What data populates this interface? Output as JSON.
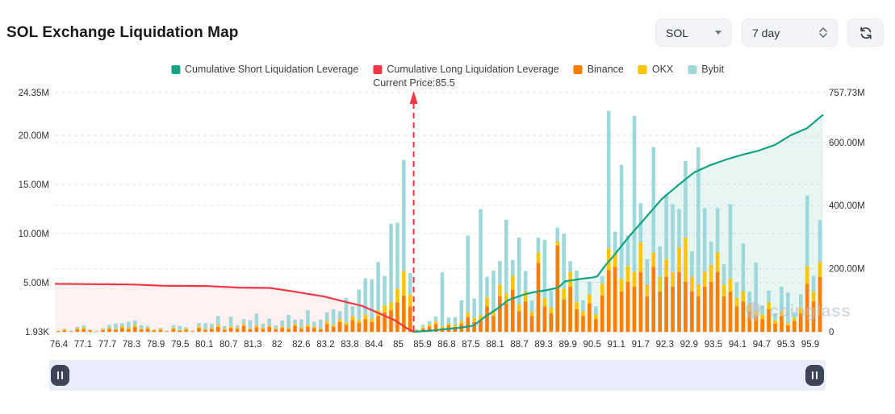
{
  "header": {
    "title": "SOL Exchange Liquidation Map",
    "controls": {
      "symbol": "SOL",
      "timeframe": "7 day",
      "refresh_icon": "refresh-icon"
    }
  },
  "legend": [
    {
      "label": "Cumulative Short Liquidation Leverage",
      "color": "#14a383"
    },
    {
      "label": "Cumulative Long Liquidation Leverage",
      "color": "#f23645"
    },
    {
      "label": "Binance",
      "color": "#ff7d00"
    },
    {
      "label": "OKX",
      "color": "#ffc400"
    },
    {
      "label": "Bybit",
      "color": "#9fd8db"
    }
  ],
  "watermark": {
    "text": "coinglass"
  },
  "chart_data": {
    "type": "bar",
    "title": "SOL Exchange Liquidation Map",
    "current_price": {
      "label": "Current Price:85.5",
      "value": 85.5,
      "x_fraction": 0.467,
      "line_color": "#f23645"
    },
    "x_axis": {
      "labels": [
        "76.4",
        "77.1",
        "77.7",
        "78.3",
        "78.9",
        "79.5",
        "80.1",
        "80.7",
        "81.3",
        "82",
        "82.6",
        "83.2",
        "83.8",
        "84.4",
        "85",
        "85.9",
        "86.8",
        "87.5",
        "88.1",
        "88.7",
        "89.3",
        "89.9",
        "90.5",
        "91.1",
        "91.7",
        "92.3",
        "92.9",
        "93.5",
        "94.1",
        "94.7",
        "95.3",
        "95.9"
      ]
    },
    "y_axis_left": {
      "unit": "M",
      "max": 24.35,
      "ticks": [
        {
          "label": "1.93K",
          "value": 0
        },
        {
          "label": "5.00M",
          "value": 5
        },
        {
          "label": "10.00M",
          "value": 10
        },
        {
          "label": "15.00M",
          "value": 15
        },
        {
          "label": "20.00M",
          "value": 20
        },
        {
          "label": "24.35M",
          "value": 24.35
        }
      ]
    },
    "y_axis_right": {
      "unit": "M",
      "max": 757.73,
      "ticks": [
        {
          "label": "0",
          "value": 0
        },
        {
          "label": "200.00M",
          "value": 200
        },
        {
          "label": "400.00M",
          "value": 400
        },
        {
          "label": "600.00M",
          "value": 600
        },
        {
          "label": "757.73M",
          "value": 757.73
        }
      ]
    },
    "bars": {
      "stack_order": [
        "Binance",
        "OKX",
        "Bybit"
      ],
      "colors": [
        "#ff7d00",
        "#ffc400",
        "#9fd8db"
      ],
      "axis": "left",
      "values_unit": "M",
      "values": [
        [
          0.08,
          0,
          0
        ],
        [
          0.15,
          0.08,
          0.1
        ],
        [
          0.05,
          0,
          0.05
        ],
        [
          0.25,
          0.12,
          0.15
        ],
        [
          0.3,
          0.15,
          0.2
        ],
        [
          0.12,
          0.05,
          0.08
        ],
        [
          0.05,
          0,
          0
        ],
        [
          0.18,
          0.08,
          0.12
        ],
        [
          0.3,
          0.12,
          0.3
        ],
        [
          0.2,
          0.1,
          0.55
        ],
        [
          0.4,
          0.18,
          0.3
        ],
        [
          0.3,
          0.12,
          0.6
        ],
        [
          0.5,
          0.2,
          0.45
        ],
        [
          0.25,
          0.1,
          0.35
        ],
        [
          0.3,
          0.12,
          0.2
        ],
        [
          0.12,
          0.05,
          0.1
        ],
        [
          0.2,
          0.08,
          0.12
        ],
        [
          0.06,
          0,
          0.05
        ],
        [
          0.3,
          0.12,
          0.25
        ],
        [
          0.12,
          0.05,
          0.45
        ],
        [
          0.22,
          0.1,
          0.15
        ],
        [
          0.06,
          0,
          0.05
        ],
        [
          0.4,
          0.15,
          0.35
        ],
        [
          0.2,
          0.08,
          0.6
        ],
        [
          0.3,
          0.12,
          0.4
        ],
        [
          0.5,
          0.2,
          0.9
        ],
        [
          0.2,
          0.1,
          0.3
        ],
        [
          0.4,
          0.15,
          1.0
        ],
        [
          0.3,
          0.12,
          0.25
        ],
        [
          0.6,
          0.2,
          0.5
        ],
        [
          0.25,
          0.1,
          0.85
        ],
        [
          0.45,
          0.2,
          1.2
        ],
        [
          0.3,
          0.12,
          0.4
        ],
        [
          0.5,
          0.15,
          0.7
        ],
        [
          0.25,
          0.1,
          0.3
        ],
        [
          0.4,
          0.15,
          0.6
        ],
        [
          0.3,
          0.12,
          1.3
        ],
        [
          0.6,
          0.2,
          0.45
        ],
        [
          0.35,
          0.12,
          0.8
        ],
        [
          0.5,
          0.2,
          1.5
        ],
        [
          0.4,
          0.15,
          0.5
        ],
        [
          0.25,
          0.1,
          0.9
        ],
        [
          0.8,
          0.3,
          0.9
        ],
        [
          0.5,
          0.2,
          1.6
        ],
        [
          1.0,
          0.3,
          0.8
        ],
        [
          0.7,
          0.25,
          2.5
        ],
        [
          1.2,
          0.4,
          1.0
        ],
        [
          0.9,
          0.3,
          3.1
        ],
        [
          1.3,
          0.45,
          3.7
        ],
        [
          1.0,
          0.35,
          4.0
        ],
        [
          1.6,
          0.6,
          4.9
        ],
        [
          2.0,
          0.7,
          3.0
        ],
        [
          2.2,
          0.8,
          8.0
        ],
        [
          3.0,
          1.4,
          6.7
        ],
        [
          3.7,
          2.5,
          11.3
        ],
        [
          2.6,
          1.2,
          2.2
        ],
        [
          0.12,
          0.05,
          0.1
        ],
        [
          0.35,
          0.12,
          0.25
        ],
        [
          0.55,
          0.2,
          0.35
        ],
        [
          0.8,
          0.25,
          0.5
        ],
        [
          0.4,
          0.15,
          5.5
        ],
        [
          0.65,
          0.2,
          0.6
        ],
        [
          0.5,
          0.2,
          0.8
        ],
        [
          0.8,
          0.3,
          2.1
        ],
        [
          1.5,
          0.5,
          7.8
        ],
        [
          1.0,
          0.4,
          2.0
        ],
        [
          1.2,
          0.5,
          10.8
        ],
        [
          2.6,
          0.9,
          2.1
        ],
        [
          1.6,
          0.55,
          4.1
        ],
        [
          3.6,
          1.2,
          2.4
        ],
        [
          2.9,
          1.0,
          7.5
        ],
        [
          4.3,
          1.4,
          1.6
        ],
        [
          2.1,
          0.7,
          6.8
        ],
        [
          3.1,
          1.0,
          2.1
        ],
        [
          1.6,
          0.5,
          1.1
        ],
        [
          7.0,
          1.1,
          1.5
        ],
        [
          2.6,
          0.85,
          5.9
        ],
        [
          1.9,
          0.6,
          1.7
        ],
        [
          8.8,
          0.4,
          1.4
        ],
        [
          3.3,
          1.1,
          5.6
        ],
        [
          4.6,
          1.5,
          1.1
        ],
        [
          2.3,
          0.75,
          3.2
        ],
        [
          1.6,
          0.5,
          1.1
        ],
        [
          2.9,
          0.9,
          1.3
        ],
        [
          1.3,
          0.45,
          0.85
        ],
        [
          3.7,
          1.2,
          0.75
        ],
        [
          6.3,
          2.2,
          14.0
        ],
        [
          6.6,
          1.5,
          2.1
        ],
        [
          4.1,
          1.3,
          11.6
        ],
        [
          5.1,
          1.6,
          3.1
        ],
        [
          4.6,
          1.5,
          15.9
        ],
        [
          6.1,
          3.0,
          4.0
        ],
        [
          3.6,
          1.2,
          2.6
        ],
        [
          6.6,
          1.5,
          10.7
        ],
        [
          4.1,
          1.5,
          3.1
        ],
        [
          5.6,
          1.8,
          6.6
        ],
        [
          4.6,
          1.5,
          6.9
        ],
        [
          6.1,
          2.5,
          3.9
        ],
        [
          5.1,
          4.5,
          7.8
        ],
        [
          4.1,
          1.5,
          2.6
        ],
        [
          3.6,
          1.2,
          14.0
        ],
        [
          4.6,
          1.5,
          6.5
        ],
        [
          5.1,
          1.7,
          2.4
        ],
        [
          6.1,
          2.0,
          4.5
        ],
        [
          3.6,
          1.2,
          2.1
        ],
        [
          4.1,
          1.3,
          7.6
        ],
        [
          2.6,
          0.85,
          1.6
        ],
        [
          3.1,
          1.0,
          4.9
        ],
        [
          2.1,
          0.7,
          1.3
        ],
        [
          1.6,
          0.55,
          4.9
        ],
        [
          1.3,
          0.45,
          0.95
        ],
        [
          2.3,
          0.7,
          1.2
        ],
        [
          0.85,
          0.3,
          0.75
        ],
        [
          1.6,
          0.5,
          2.5
        ],
        [
          0.65,
          0.25,
          3.1
        ],
        [
          1.1,
          0.35,
          0.55
        ],
        [
          1.9,
          0.6,
          1.3
        ],
        [
          4.9,
          1.8,
          7.2
        ],
        [
          3.1,
          1.0,
          1.6
        ],
        [
          5.6,
          1.5,
          4.3
        ]
      ]
    },
    "lines": [
      {
        "name": "Cumulative Long Liquidation Leverage",
        "color": "#f23645",
        "fill": "rgba(242,54,69,0.07)",
        "axis": "right",
        "points": [
          [
            0,
            152
          ],
          [
            0.05,
            151
          ],
          [
            0.1,
            150
          ],
          [
            0.14,
            146
          ],
          [
            0.2,
            145
          ],
          [
            0.24,
            140
          ],
          [
            0.28,
            139
          ],
          [
            0.31,
            128
          ],
          [
            0.35,
            112
          ],
          [
            0.38,
            94
          ],
          [
            0.4,
            82
          ],
          [
            0.42,
            61
          ],
          [
            0.443,
            36
          ],
          [
            0.459,
            10
          ],
          [
            0.467,
            0
          ]
        ]
      },
      {
        "name": "Cumulative Short Liquidation Leverage",
        "color": "#14a383",
        "fill": "rgba(20,163,131,0.10)",
        "axis": "right",
        "points": [
          [
            0.467,
            0
          ],
          [
            0.49,
            4
          ],
          [
            0.51,
            9
          ],
          [
            0.53,
            14
          ],
          [
            0.545,
            20
          ],
          [
            0.553,
            35
          ],
          [
            0.56,
            48
          ],
          [
            0.575,
            72
          ],
          [
            0.59,
            100
          ],
          [
            0.61,
            118
          ],
          [
            0.622,
            125
          ],
          [
            0.64,
            132
          ],
          [
            0.655,
            140
          ],
          [
            0.664,
            160
          ],
          [
            0.685,
            168
          ],
          [
            0.7,
            172
          ],
          [
            0.706,
            176
          ],
          [
            0.716,
            209
          ],
          [
            0.727,
            240
          ],
          [
            0.748,
            304
          ],
          [
            0.769,
            362
          ],
          [
            0.79,
            421
          ],
          [
            0.811,
            464
          ],
          [
            0.832,
            505
          ],
          [
            0.853,
            528
          ],
          [
            0.874,
            546
          ],
          [
            0.895,
            561
          ],
          [
            0.916,
            574
          ],
          [
            0.937,
            592
          ],
          [
            0.958,
            623
          ],
          [
            0.979,
            645
          ],
          [
            1,
            688
          ]
        ]
      }
    ],
    "grid": {
      "style": "dashed",
      "color": "#e7e8ea"
    },
    "legend_position": "top-center"
  }
}
